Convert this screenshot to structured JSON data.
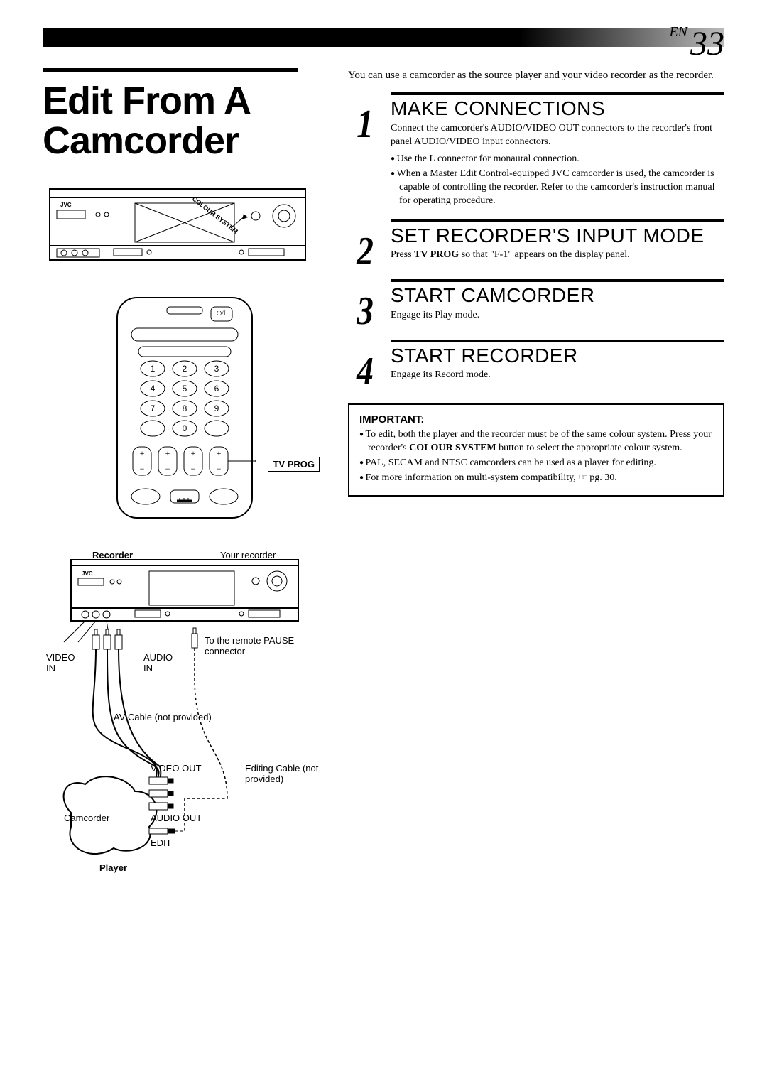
{
  "header": {
    "lang": "EN",
    "page_number": "33"
  },
  "title": "Edit From A Camcorder",
  "intro": "You can use a camcorder as the source player and your video recorder as the recorder.",
  "steps": [
    {
      "num": "1",
      "title": "MAKE CONNECTIONS",
      "body": "Connect the camcorder's AUDIO/VIDEO OUT connectors to the recorder's front panel AUDIO/VIDEO input connectors.",
      "bullets": [
        "Use the L connector for monaural connection.",
        "When a Master Edit Control-equipped JVC camcorder is used, the camcorder is capable of controlling the recorder. Refer to the camcorder's instruction manual for operating procedure."
      ]
    },
    {
      "num": "2",
      "title": "SET RECORDER'S INPUT MODE",
      "body_html": "Press <b>TV PROG</b> so that \"F-1\" appears on the display panel."
    },
    {
      "num": "3",
      "title": "START CAMCORDER",
      "body": "Engage its Play mode."
    },
    {
      "num": "4",
      "title": "START RECORDER",
      "body": "Engage its Record mode."
    }
  ],
  "important": {
    "heading": "IMPORTANT:",
    "items_html": [
      "To edit, both the player and the recorder must be of the same colour system. Press your recorder's <b>COLOUR SYSTEM</b> button to select the appropriate colour system.",
      "PAL, SECAM and NTSC camcorders can be used as a player for editing.",
      "For more information on multi-system compatibility, ☞ pg. 30."
    ]
  },
  "remote": {
    "tv_prog_label": "TV PROG",
    "keys": [
      "1",
      "2",
      "3",
      "4",
      "5",
      "6",
      "7",
      "8",
      "9",
      "0"
    ]
  },
  "vcr": {
    "colour_system_label": "COLOUR SYSTEM",
    "brand": "JVC"
  },
  "diagram": {
    "recorder_bold": "Recorder",
    "recorder_note": "Your recorder",
    "video_in": "VIDEO\nIN",
    "audio_in": "AUDIO\nIN",
    "pause_note": "To the remote PAUSE connector",
    "av_cable": "AV Cable (not provided)",
    "video_out": "VIDEO OUT",
    "audio_out": "AUDIO OUT",
    "edit": "EDIT",
    "editing_cable": "Editing Cable (not provided)",
    "camcorder": "Camcorder",
    "player_bold": "Player"
  },
  "colors": {
    "black": "#000000",
    "white": "#ffffff",
    "grad_light": "#bbbbbb"
  },
  "fonts": {
    "title_family": "Arial Black, Futura, Helvetica, sans-serif",
    "step_title_family": "Gill Sans, Trebuchet MS, Helvetica, sans-serif",
    "body_family": "Georgia, Times New Roman, serif",
    "title_size_pt": 40,
    "step_title_size_pt": 21,
    "body_size_pt": 11,
    "step_num_size_pt": 42
  }
}
